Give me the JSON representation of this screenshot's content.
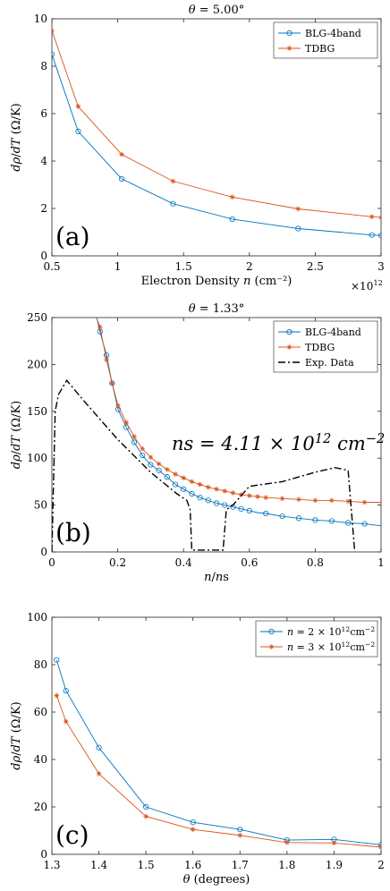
{
  "chart_data": [
    {
      "type": "line",
      "title": "θ = 5.00°",
      "panel_label": "(a)",
      "xlabel": "Electron Density n (cm⁻²)",
      "ylabel": "dρ/dT (Ω/K)",
      "x_exponent_label": "×10",
      "x_exponent_power": "12",
      "xlim": [
        0.5,
        3.0
      ],
      "ylim": [
        0,
        10
      ],
      "xticks": [
        0.5,
        1,
        1.5,
        2,
        2.5,
        3
      ],
      "xtick_labels": [
        "0.5",
        "1",
        "1.5",
        "2",
        "2.5",
        "3"
      ],
      "yticks": [
        0,
        2,
        4,
        6,
        8,
        10
      ],
      "ytick_labels": [
        "0",
        "2",
        "4",
        "6",
        "8",
        "10"
      ],
      "legend_position": "top-right",
      "series": [
        {
          "name": "BLG-4band",
          "color": "#0072BD",
          "marker": "circle",
          "x": [
            0.5,
            0.7,
            1.03,
            1.42,
            1.87,
            2.37,
            2.93,
            3.0
          ],
          "y": [
            8.5,
            5.25,
            3.25,
            2.2,
            1.55,
            1.15,
            0.88,
            0.86
          ]
        },
        {
          "name": "TDBG",
          "color": "#D95319",
          "marker": "star",
          "x": [
            0.5,
            0.7,
            1.03,
            1.42,
            1.87,
            2.37,
            2.93,
            3.0
          ],
          "y": [
            9.5,
            6.3,
            4.28,
            3.15,
            2.48,
            1.98,
            1.65,
            1.62
          ]
        }
      ]
    },
    {
      "type": "line",
      "title": "θ = 1.33°",
      "panel_label": "(b)",
      "xlabel": "n/n_s",
      "ylabel": "dρ/dT (Ω/K)",
      "annotation": "n_s = 4.11 × 10¹² cm⁻²",
      "xlim": [
        0,
        1
      ],
      "ylim": [
        0,
        250
      ],
      "xticks": [
        0,
        0.2,
        0.4,
        0.6,
        0.8,
        1
      ],
      "xtick_labels": [
        "0",
        "0.2",
        "0.4",
        "0.6",
        "0.8",
        "1"
      ],
      "yticks": [
        0,
        50,
        100,
        150,
        200,
        250
      ],
      "ytick_labels": [
        "0",
        "50",
        "100",
        "150",
        "200",
        "250"
      ],
      "legend_position": "top-right",
      "series": [
        {
          "name": "BLG-4band",
          "color": "#0072BD",
          "marker": "circle",
          "x": [
            0.13,
            0.146,
            0.166,
            0.183,
            0.201,
            0.226,
            0.25,
            0.275,
            0.3,
            0.325,
            0.35,
            0.375,
            0.4,
            0.425,
            0.45,
            0.475,
            0.5,
            0.525,
            0.55,
            0.575,
            0.6,
            0.625,
            0.65,
            0.7,
            0.75,
            0.8,
            0.85,
            0.9,
            0.95,
            1.0
          ],
          "y": [
            260,
            235,
            210,
            180,
            152,
            133,
            117,
            103,
            93,
            87,
            80,
            72,
            67,
            62,
            58,
            55,
            52,
            50,
            48,
            46,
            44,
            42,
            41,
            38,
            36,
            34,
            33,
            31,
            30,
            28
          ],
          "marker_x": [
            0.146,
            0.166,
            0.183,
            0.201,
            0.226,
            0.25,
            0.275,
            0.3,
            0.325,
            0.35,
            0.375,
            0.4,
            0.425,
            0.45,
            0.475,
            0.5,
            0.525,
            0.55,
            0.575,
            0.6,
            0.65,
            0.7,
            0.75,
            0.8,
            0.85,
            0.9,
            0.95
          ]
        },
        {
          "name": "TDBG",
          "color": "#D95319",
          "marker": "star",
          "x": [
            0.125,
            0.146,
            0.166,
            0.183,
            0.201,
            0.226,
            0.25,
            0.275,
            0.3,
            0.325,
            0.35,
            0.375,
            0.4,
            0.425,
            0.45,
            0.475,
            0.5,
            0.525,
            0.55,
            0.575,
            0.6,
            0.625,
            0.65,
            0.7,
            0.75,
            0.8,
            0.85,
            0.9,
            0.95,
            1.0
          ],
          "y": [
            260,
            240,
            205,
            180,
            156,
            138,
            123,
            110,
            101,
            94,
            88,
            83,
            79,
            75,
            72,
            69,
            67,
            65,
            63,
            61,
            60,
            59,
            58,
            57,
            56,
            55,
            55,
            54,
            53,
            53
          ],
          "marker_x": [
            0.146,
            0.166,
            0.183,
            0.201,
            0.226,
            0.25,
            0.275,
            0.3,
            0.325,
            0.35,
            0.375,
            0.4,
            0.425,
            0.45,
            0.475,
            0.5,
            0.525,
            0.55,
            0.575,
            0.6,
            0.625,
            0.65,
            0.7,
            0.75,
            0.8,
            0.85,
            0.9,
            0.95
          ]
        },
        {
          "name": "Exp. Data",
          "color": "#000000",
          "style": "dashdot",
          "x": [
            0.0,
            0.01,
            0.02,
            0.045,
            0.1,
            0.2,
            0.3,
            0.38,
            0.41,
            0.42,
            0.425,
            0.43,
            0.465,
            0.5,
            0.52,
            0.53,
            0.55,
            0.6,
            0.7,
            0.8,
            0.86,
            0.9,
            0.92
          ],
          "y": [
            0,
            150,
            168,
            183,
            160,
            120,
            85,
            62,
            55,
            45,
            2,
            2,
            2,
            2,
            2,
            45,
            50,
            70,
            75,
            85,
            90,
            87,
            0
          ]
        }
      ]
    },
    {
      "type": "line",
      "panel_label": "(c)",
      "xlabel": "θ (degrees)",
      "ylabel": "dρ/dT (Ω/K)",
      "xlim": [
        1.3,
        2.0
      ],
      "ylim": [
        0,
        100
      ],
      "xticks": [
        1.3,
        1.4,
        1.5,
        1.6,
        1.7,
        1.8,
        1.9,
        2
      ],
      "xtick_labels": [
        "1.3",
        "1.4",
        "1.5",
        "1.6",
        "1.7",
        "1.8",
        "1.9",
        "2"
      ],
      "yticks": [
        0,
        20,
        40,
        60,
        80,
        100
      ],
      "ytick_labels": [
        "0",
        "20",
        "40",
        "60",
        "80",
        "100"
      ],
      "legend_position": "top-right",
      "series": [
        {
          "name": "n = 2 × 10¹²cm⁻²",
          "color": "#0072BD",
          "marker": "circle",
          "x": [
            1.31,
            1.33,
            1.4,
            1.5,
            1.6,
            1.7,
            1.8,
            1.9,
            2.0
          ],
          "y": [
            82,
            69,
            45,
            20,
            13.5,
            10.5,
            6,
            6.3,
            4
          ]
        },
        {
          "name": "n = 3 × 10¹²cm⁻²",
          "color": "#D95319",
          "marker": "star",
          "x": [
            1.31,
            1.33,
            1.4,
            1.5,
            1.6,
            1.7,
            1.8,
            1.9,
            2.0
          ],
          "y": [
            67,
            56,
            34,
            16,
            10.5,
            8,
            5,
            4.8,
            3
          ]
        }
      ]
    }
  ]
}
